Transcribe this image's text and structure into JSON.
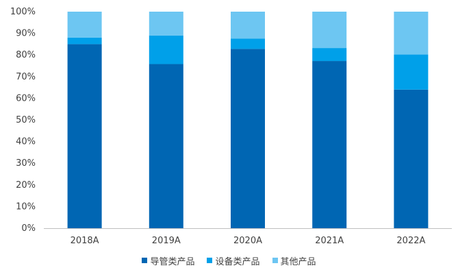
{
  "chart_data": {
    "type": "bar",
    "stacked": true,
    "categories": [
      "2018A",
      "2019A",
      "2020A",
      "2021A",
      "2022A"
    ],
    "series": [
      {
        "name": "导管类产品",
        "color": "#0066B3",
        "values": [
          85.0,
          75.8,
          82.8,
          77.2,
          64.0
        ]
      },
      {
        "name": "设备类产品",
        "color": "#00A0E9",
        "values": [
          3.0,
          13.2,
          4.7,
          6.0,
          16.2
        ]
      },
      {
        "name": "其他产品",
        "color": "#6DC6F2",
        "values": [
          12.0,
          11.0,
          12.5,
          16.8,
          19.8
        ]
      }
    ],
    "yticks": [
      "0%",
      "10%",
      "20%",
      "30%",
      "40%",
      "50%",
      "60%",
      "70%",
      "80%",
      "90%",
      "100%"
    ],
    "ylim": [
      0,
      100
    ],
    "legend_position": "bottom",
    "grid": false,
    "title": "",
    "xlabel": "",
    "ylabel": ""
  }
}
